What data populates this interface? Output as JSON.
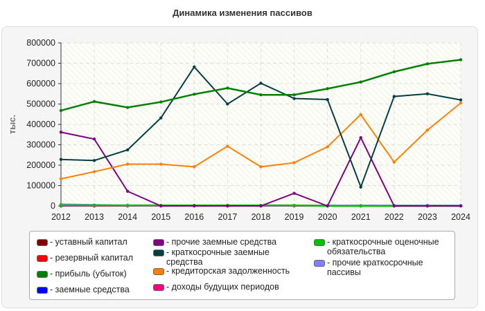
{
  "chart_data": {
    "type": "line",
    "title": "Динамика изменения пассивов",
    "ylabel": "тыс.",
    "xlabel": "",
    "x": [
      2012,
      2013,
      2014,
      2015,
      2016,
      2017,
      2018,
      2019,
      2020,
      2021,
      2022,
      2023,
      2024
    ],
    "ylim": [
      0,
      800000
    ],
    "yticks": [
      "0",
      "100000",
      "200000",
      "300000",
      "400000",
      "500000",
      "600000",
      "700000",
      "800000"
    ],
    "grid": true,
    "legend_position": "bottom",
    "series": [
      {
        "name": "- уставный капитал",
        "color": "#800000",
        "values": [
          1000,
          1000,
          1000,
          1000,
          1000,
          1000,
          1000,
          1000,
          1000,
          1000,
          1000,
          1000,
          1000
        ]
      },
      {
        "name": "- резервный капитал",
        "color": "#ff0000",
        "values": [
          0,
          0,
          2000,
          2000,
          2000,
          2000,
          2000,
          2000,
          2000,
          2000,
          2000,
          2000,
          2000
        ]
      },
      {
        "name": "- прибыль (убыток)",
        "color": "#008000",
        "values": [
          468000,
          512000,
          483000,
          510000,
          548000,
          578000,
          545000,
          545000,
          575000,
          608000,
          658000,
          697000,
          717000
        ]
      },
      {
        "name": "- заемные средства",
        "color": "#0000ff",
        "values": [
          0,
          0,
          0,
          0,
          0,
          0,
          0,
          0,
          0,
          0,
          0,
          0,
          0
        ]
      },
      {
        "name": "- прочие заемные средства",
        "color": "#800080",
        "values": [
          362000,
          328000,
          72000,
          0,
          0,
          0,
          0,
          62000,
          0,
          335000,
          0,
          0,
          0
        ]
      },
      {
        "name": "- краткосрочные заемные средства",
        "color": "#004040",
        "values": [
          228000,
          223000,
          275000,
          432000,
          682000,
          500000,
          602000,
          527000,
          522000,
          93000,
          537000,
          550000,
          520000
        ]
      },
      {
        "name": "- кредиторская задолженность",
        "color": "#ff8000",
        "values": [
          133000,
          168000,
          205000,
          205000,
          192000,
          293000,
          192000,
          212000,
          290000,
          448000,
          215000,
          372000,
          505000
        ]
      },
      {
        "name": "- доходы будущих периодов",
        "color": "#ff0080",
        "values": [
          0,
          0,
          0,
          0,
          0,
          0,
          0,
          0,
          0,
          0,
          0,
          0,
          0
        ]
      },
      {
        "name": "- краткосрочные оценочные обязательства",
        "color": "#00c000",
        "values": [
          3000,
          3000,
          3000,
          3000,
          3000,
          3000,
          3000,
          3000,
          0,
          0,
          0,
          0,
          0
        ]
      },
      {
        "name": "- прочие краткосрочные пассивы",
        "color": "#8080ff",
        "values": [
          8000,
          5000,
          2000,
          2000,
          2000,
          2000,
          2000,
          2000,
          2000,
          2000,
          2000,
          2000,
          2000
        ]
      }
    ]
  }
}
